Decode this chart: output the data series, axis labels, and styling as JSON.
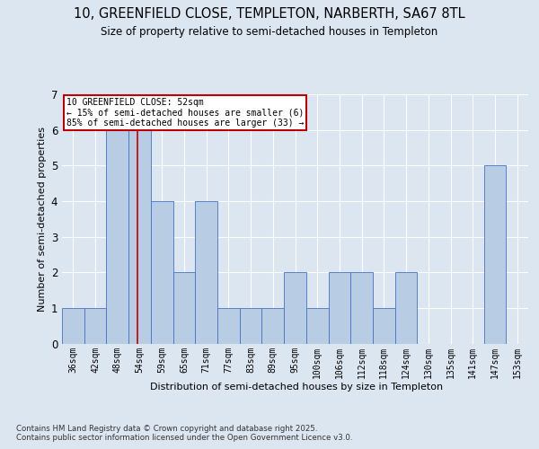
{
  "title1": "10, GREENFIELD CLOSE, TEMPLETON, NARBERTH, SA67 8TL",
  "title2": "Size of property relative to semi-detached houses in Templeton",
  "xlabel": "Distribution of semi-detached houses by size in Templeton",
  "ylabel": "Number of semi-detached properties",
  "footnote": "Contains HM Land Registry data © Crown copyright and database right 2025.\nContains public sector information licensed under the Open Government Licence v3.0.",
  "annotation_line1": "10 GREENFIELD CLOSE: 52sqm",
  "annotation_line2": "← 15% of semi-detached houses are smaller (6)",
  "annotation_line3": "85% of semi-detached houses are larger (33) →",
  "bins": [
    36,
    42,
    48,
    54,
    59,
    65,
    71,
    77,
    83,
    89,
    95,
    100,
    106,
    112,
    118,
    124,
    130,
    135,
    141,
    147,
    153
  ],
  "counts": [
    1,
    1,
    6,
    6,
    4,
    2,
    4,
    1,
    1,
    1,
    2,
    1,
    2,
    2,
    1,
    2,
    0,
    0,
    0,
    5,
    0
  ],
  "bar_color": "#b8cce4",
  "bar_edge_color": "#4472c4",
  "subject_line_color": "#c00000",
  "annotation_box_color": "#c00000",
  "bg_color": "#dce6f1",
  "plot_bg_color": "#dce6f1",
  "grid_color": "#ffffff",
  "ylim": [
    0,
    7
  ],
  "yticks": [
    0,
    1,
    2,
    3,
    4,
    5,
    6,
    7
  ],
  "subject_bar_index": 3
}
